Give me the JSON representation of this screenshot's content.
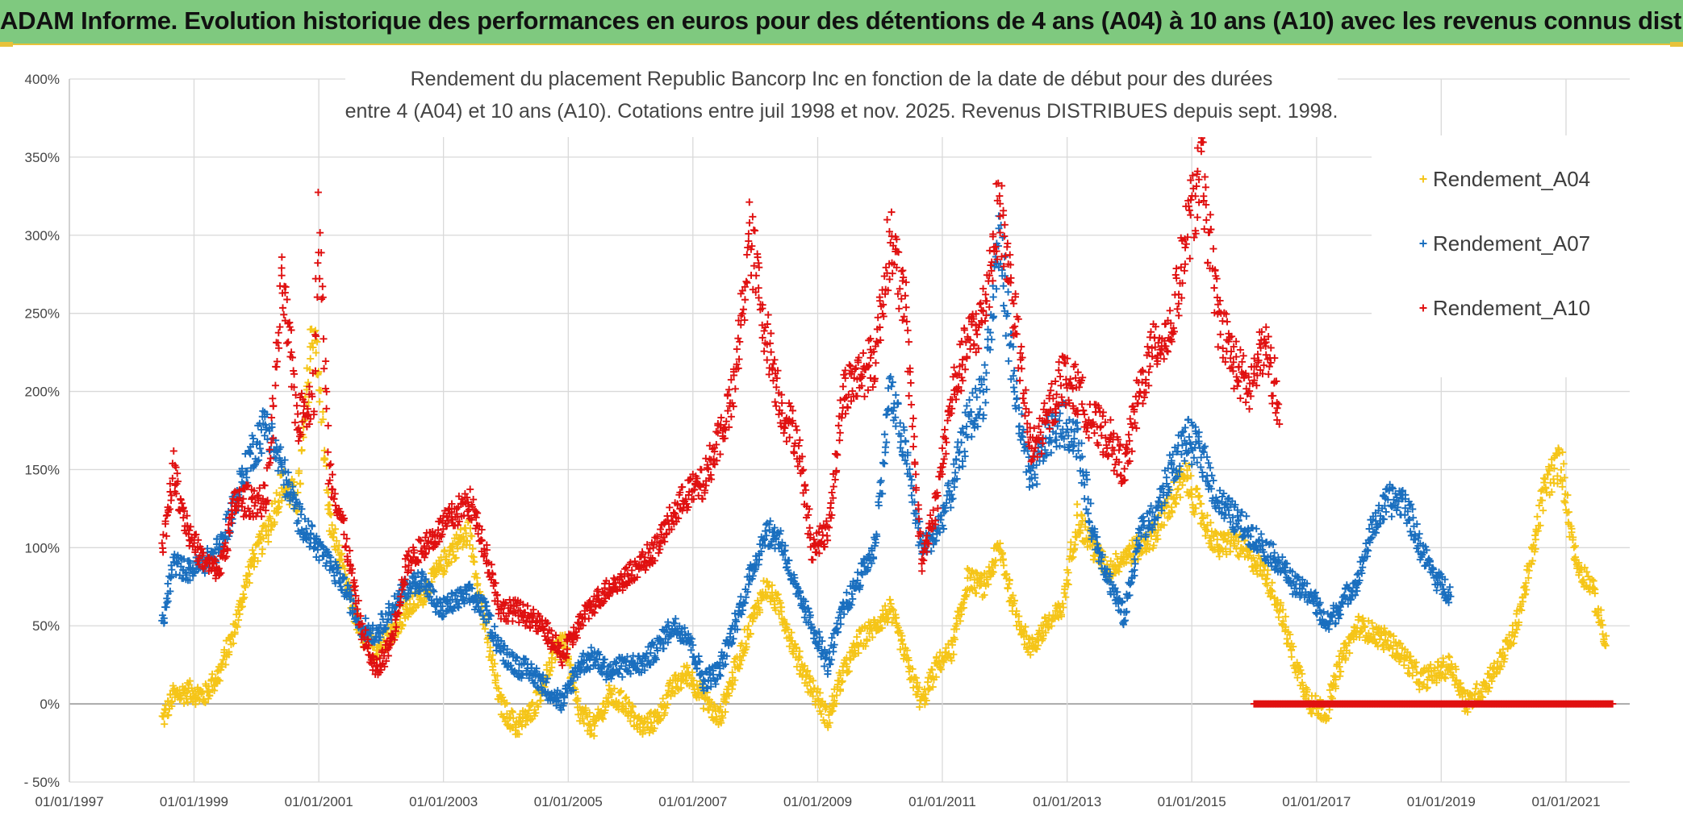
{
  "header": {
    "banner": "ADAM Informe. Evolution historique des performances en euros pour des détentions de 4 ans (A04) à 10 ans (A10) avec les revenus connus distribués"
  },
  "chart_data": {
    "type": "scatter",
    "title_lines": [
      "Rendement du placement Republic Bancorp Inc en fonction de la date de début pour des durées",
      "entre 4 (A04) et 10 ans (A10). Cotations entre juil 1998 et nov. 2025. Revenus DISTRIBUES depuis sept. 1998."
    ],
    "xlabel": "",
    "ylabel": "",
    "x_range": [
      "1997-01-01",
      "2021-10-01"
    ],
    "x_ticks": [
      "01/01/1997",
      "01/01/1999",
      "01/01/2001",
      "01/01/2003",
      "01/01/2005",
      "01/01/2007",
      "01/01/2009",
      "01/01/2011",
      "01/01/2013",
      "01/01/2015",
      "01/01/2017",
      "01/01/2019",
      "01/01/2021"
    ],
    "y_range": [
      -50,
      400
    ],
    "y_ticks": [
      "400%",
      "350%",
      "300%",
      "250%",
      "200%",
      "150%",
      "100%",
      "50%",
      "0%",
      "- 50%"
    ],
    "y_tick_values": [
      400,
      350,
      300,
      250,
      200,
      150,
      100,
      50,
      0,
      -50
    ],
    "grid": true,
    "legend_position": "top-right",
    "marker": "+",
    "series": [
      {
        "name": "Rendement_A04",
        "color": "#f5c518",
        "points": [
          [
            "1998-07-01",
            -10
          ],
          [
            "1998-09-01",
            5
          ],
          [
            "1998-12-01",
            8
          ],
          [
            "1999-03-01",
            5
          ],
          [
            "1999-06-01",
            20
          ],
          [
            "1999-09-01",
            50
          ],
          [
            "1999-12-01",
            90
          ],
          [
            "2000-03-01",
            110
          ],
          [
            "2000-06-01",
            140
          ],
          [
            "2000-09-01",
            130
          ],
          [
            "2000-12-01",
            245
          ],
          [
            "2001-01-15",
            190
          ],
          [
            "2001-03-01",
            120
          ],
          [
            "2001-06-01",
            80
          ],
          [
            "2001-09-01",
            45
          ],
          [
            "2001-12-01",
            35
          ],
          [
            "2002-03-01",
            45
          ],
          [
            "2002-06-01",
            60
          ],
          [
            "2002-09-01",
            70
          ],
          [
            "2002-12-01",
            85
          ],
          [
            "2003-03-01",
            100
          ],
          [
            "2003-06-01",
            110
          ],
          [
            "2003-09-01",
            50
          ],
          [
            "2003-12-01",
            0
          ],
          [
            "2004-03-01",
            -15
          ],
          [
            "2004-06-01",
            -5
          ],
          [
            "2004-09-01",
            20
          ],
          [
            "2004-12-01",
            45
          ],
          [
            "2005-03-01",
            -5
          ],
          [
            "2005-06-01",
            -15
          ],
          [
            "2005-09-01",
            5
          ],
          [
            "2005-12-01",
            0
          ],
          [
            "2006-03-01",
            -15
          ],
          [
            "2006-06-01",
            -10
          ],
          [
            "2006-09-01",
            10
          ],
          [
            "2006-12-01",
            20
          ],
          [
            "2007-03-01",
            5
          ],
          [
            "2007-06-01",
            -10
          ],
          [
            "2007-09-01",
            20
          ],
          [
            "2007-12-01",
            50
          ],
          [
            "2008-03-01",
            75
          ],
          [
            "2008-06-01",
            60
          ],
          [
            "2008-09-01",
            30
          ],
          [
            "2008-12-01",
            10
          ],
          [
            "2009-03-01",
            -10
          ],
          [
            "2009-06-01",
            20
          ],
          [
            "2009-09-01",
            40
          ],
          [
            "2009-12-01",
            50
          ],
          [
            "2010-03-01",
            60
          ],
          [
            "2010-06-01",
            30
          ],
          [
            "2010-09-01",
            0
          ],
          [
            "2010-12-01",
            25
          ],
          [
            "2011-03-01",
            35
          ],
          [
            "2011-06-01",
            80
          ],
          [
            "2011-09-01",
            75
          ],
          [
            "2011-12-01",
            100
          ],
          [
            "2012-03-01",
            60
          ],
          [
            "2012-06-01",
            35
          ],
          [
            "2012-09-01",
            50
          ],
          [
            "2012-12-01",
            60
          ],
          [
            "2013-03-01",
            120
          ],
          [
            "2013-06-01",
            100
          ],
          [
            "2013-09-01",
            85
          ],
          [
            "2013-12-01",
            95
          ],
          [
            "2014-03-01",
            100
          ],
          [
            "2014-06-01",
            110
          ],
          [
            "2014-09-01",
            130
          ],
          [
            "2014-12-01",
            145
          ],
          [
            "2015-03-01",
            120
          ],
          [
            "2015-06-01",
            100
          ],
          [
            "2015-09-01",
            105
          ],
          [
            "2015-12-01",
            95
          ],
          [
            "2016-03-01",
            85
          ],
          [
            "2016-06-01",
            60
          ],
          [
            "2016-09-01",
            25
          ],
          [
            "2016-12-01",
            0
          ],
          [
            "2017-03-01",
            -5
          ],
          [
            "2017-06-01",
            30
          ],
          [
            "2017-09-01",
            50
          ],
          [
            "2017-12-01",
            45
          ],
          [
            "2018-03-01",
            40
          ],
          [
            "2018-06-01",
            30
          ],
          [
            "2018-09-01",
            15
          ],
          [
            "2018-12-01",
            20
          ],
          [
            "2019-03-01",
            25
          ],
          [
            "2019-06-01",
            0
          ],
          [
            "2019-09-01",
            10
          ],
          [
            "2019-12-01",
            25
          ],
          [
            "2020-03-01",
            45
          ],
          [
            "2020-06-01",
            85
          ],
          [
            "2020-09-01",
            140
          ],
          [
            "2020-12-01",
            155
          ],
          [
            "2021-03-01",
            90
          ],
          [
            "2021-06-01",
            75
          ],
          [
            "2021-09-01",
            35
          ]
        ]
      },
      {
        "name": "Rendement_A07",
        "color": "#1a6fbf",
        "points": [
          [
            "1998-07-01",
            50
          ],
          [
            "1998-09-01",
            90
          ],
          [
            "1998-12-01",
            85
          ],
          [
            "1999-03-01",
            90
          ],
          [
            "1999-06-01",
            100
          ],
          [
            "1999-09-01",
            130
          ],
          [
            "1999-12-01",
            160
          ],
          [
            "2000-03-01",
            180
          ],
          [
            "2000-06-01",
            150
          ],
          [
            "2000-09-01",
            120
          ],
          [
            "2000-12-01",
            105
          ],
          [
            "2001-03-01",
            90
          ],
          [
            "2001-06-01",
            75
          ],
          [
            "2001-09-01",
            50
          ],
          [
            "2001-12-01",
            45
          ],
          [
            "2002-03-01",
            60
          ],
          [
            "2002-06-01",
            75
          ],
          [
            "2002-09-01",
            80
          ],
          [
            "2002-12-01",
            60
          ],
          [
            "2003-03-01",
            65
          ],
          [
            "2003-06-01",
            70
          ],
          [
            "2003-09-01",
            60
          ],
          [
            "2003-12-01",
            35
          ],
          [
            "2004-03-01",
            25
          ],
          [
            "2004-06-01",
            20
          ],
          [
            "2004-09-01",
            10
          ],
          [
            "2004-12-01",
            0
          ],
          [
            "2005-03-01",
            25
          ],
          [
            "2005-06-01",
            30
          ],
          [
            "2005-09-01",
            20
          ],
          [
            "2005-12-01",
            25
          ],
          [
            "2006-03-01",
            25
          ],
          [
            "2006-06-01",
            35
          ],
          [
            "2006-09-01",
            50
          ],
          [
            "2006-12-01",
            45
          ],
          [
            "2007-03-01",
            15
          ],
          [
            "2007-06-01",
            20
          ],
          [
            "2007-09-01",
            50
          ],
          [
            "2007-12-01",
            80
          ],
          [
            "2008-03-01",
            110
          ],
          [
            "2008-06-01",
            105
          ],
          [
            "2008-09-01",
            70
          ],
          [
            "2008-12-01",
            50
          ],
          [
            "2009-03-01",
            25
          ],
          [
            "2009-06-01",
            60
          ],
          [
            "2009-09-01",
            80
          ],
          [
            "2009-12-01",
            100
          ],
          [
            "2010-03-01",
            200
          ],
          [
            "2010-06-01",
            160
          ],
          [
            "2010-09-01",
            100
          ],
          [
            "2010-12-01",
            110
          ],
          [
            "2011-03-01",
            140
          ],
          [
            "2011-06-01",
            180
          ],
          [
            "2011-09-01",
            200
          ],
          [
            "2011-12-01",
            300
          ],
          [
            "2012-03-01",
            200
          ],
          [
            "2012-06-01",
            140
          ],
          [
            "2012-09-01",
            170
          ],
          [
            "2012-12-01",
            180
          ],
          [
            "2013-03-01",
            170
          ],
          [
            "2013-06-01",
            110
          ],
          [
            "2013-09-01",
            80
          ],
          [
            "2013-12-01",
            55
          ],
          [
            "2014-03-01",
            110
          ],
          [
            "2014-06-01",
            120
          ],
          [
            "2014-09-01",
            150
          ],
          [
            "2014-12-01",
            170
          ],
          [
            "2015-03-01",
            160
          ],
          [
            "2015-06-01",
            130
          ],
          [
            "2015-09-01",
            120
          ],
          [
            "2015-12-01",
            110
          ],
          [
            "2016-03-01",
            100
          ],
          [
            "2016-06-01",
            90
          ],
          [
            "2016-09-01",
            75
          ],
          [
            "2016-12-01",
            70
          ],
          [
            "2017-03-01",
            50
          ],
          [
            "2017-06-01",
            65
          ],
          [
            "2017-09-01",
            80
          ],
          [
            "2017-12-01",
            115
          ],
          [
            "2018-03-01",
            130
          ],
          [
            "2018-06-01",
            130
          ],
          [
            "2018-09-01",
            100
          ],
          [
            "2018-12-01",
            80
          ],
          [
            "2019-03-01",
            70
          ]
        ]
      },
      {
        "name": "Rendement_A10",
        "color": "#e01010",
        "points": [
          [
            "1998-07-01",
            100
          ],
          [
            "1998-09-01",
            150
          ],
          [
            "1998-12-01",
            110
          ],
          [
            "1999-03-01",
            90
          ],
          [
            "1999-06-01",
            85
          ],
          [
            "1999-09-01",
            130
          ],
          [
            "1999-12-01",
            130
          ],
          [
            "2000-03-01",
            130
          ],
          [
            "2000-06-01",
            270
          ],
          [
            "2000-09-01",
            180
          ],
          [
            "2000-12-01",
            200
          ],
          [
            "2001-01-01",
            310
          ],
          [
            "2001-03-01",
            150
          ],
          [
            "2001-06-01",
            110
          ],
          [
            "2001-09-01",
            50
          ],
          [
            "2001-12-01",
            20
          ],
          [
            "2002-03-01",
            40
          ],
          [
            "2002-06-01",
            90
          ],
          [
            "2002-09-01",
            100
          ],
          [
            "2002-12-01",
            110
          ],
          [
            "2003-03-01",
            120
          ],
          [
            "2003-06-01",
            130
          ],
          [
            "2003-09-01",
            100
          ],
          [
            "2003-12-01",
            60
          ],
          [
            "2004-03-01",
            60
          ],
          [
            "2004-06-01",
            55
          ],
          [
            "2004-09-01",
            45
          ],
          [
            "2004-12-01",
            30
          ],
          [
            "2005-03-01",
            50
          ],
          [
            "2005-06-01",
            65
          ],
          [
            "2005-09-01",
            75
          ],
          [
            "2005-12-01",
            80
          ],
          [
            "2006-03-01",
            90
          ],
          [
            "2006-06-01",
            100
          ],
          [
            "2006-09-01",
            120
          ],
          [
            "2006-12-01",
            135
          ],
          [
            "2007-03-01",
            140
          ],
          [
            "2007-06-01",
            170
          ],
          [
            "2007-09-01",
            200
          ],
          [
            "2007-12-01",
            300
          ],
          [
            "2008-03-01",
            240
          ],
          [
            "2008-06-01",
            190
          ],
          [
            "2008-09-01",
            170
          ],
          [
            "2008-12-01",
            100
          ],
          [
            "2009-03-01",
            110
          ],
          [
            "2009-06-01",
            200
          ],
          [
            "2009-09-01",
            210
          ],
          [
            "2009-12-01",
            220
          ],
          [
            "2010-03-01",
            300
          ],
          [
            "2010-06-01",
            250
          ],
          [
            "2010-09-01",
            90
          ],
          [
            "2010-12-01",
            130
          ],
          [
            "2011-03-01",
            200
          ],
          [
            "2011-06-01",
            230
          ],
          [
            "2011-09-01",
            250
          ],
          [
            "2011-12-01",
            320
          ],
          [
            "2012-03-01",
            250
          ],
          [
            "2012-06-01",
            160
          ],
          [
            "2012-09-01",
            180
          ],
          [
            "2012-12-01",
            210
          ],
          [
            "2013-03-01",
            200
          ],
          [
            "2013-06-01",
            180
          ],
          [
            "2013-09-01",
            170
          ],
          [
            "2013-12-01",
            150
          ],
          [
            "2014-03-01",
            200
          ],
          [
            "2014-06-01",
            230
          ],
          [
            "2014-09-01",
            240
          ],
          [
            "2014-12-01",
            300
          ],
          [
            "2015-03-01",
            340
          ],
          [
            "2015-06-01",
            250
          ],
          [
            "2015-09-01",
            220
          ],
          [
            "2015-12-01",
            200
          ],
          [
            "2016-03-01",
            230
          ],
          [
            "2016-06-01",
            190
          ]
        ],
        "zero_segment": {
          "from": "2016-01-01",
          "to": "2021-10-01",
          "value": 0
        }
      }
    ]
  }
}
